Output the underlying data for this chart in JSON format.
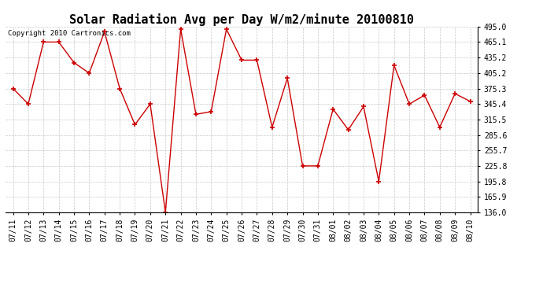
{
  "title": "Solar Radiation Avg per Day W/m2/minute 20100810",
  "copyright": "Copyright 2010 Cartronics.com",
  "dates": [
    "07/11",
    "07/12",
    "07/13",
    "07/14",
    "07/15",
    "07/16",
    "07/17",
    "07/18",
    "07/19",
    "07/20",
    "07/21",
    "07/22",
    "07/23",
    "07/24",
    "07/25",
    "07/26",
    "07/27",
    "07/28",
    "07/29",
    "07/30",
    "07/31",
    "08/01",
    "08/02",
    "08/03",
    "08/04",
    "08/05",
    "08/06",
    "08/07",
    "08/08",
    "08/09",
    "08/10"
  ],
  "values": [
    375.3,
    345.4,
    465.1,
    465.1,
    425.2,
    405.2,
    485.0,
    375.3,
    305.5,
    345.4,
    136.0,
    490.0,
    325.5,
    330.5,
    490.0,
    430.2,
    430.2,
    300.5,
    395.3,
    225.8,
    225.8,
    335.5,
    295.6,
    340.4,
    195.8,
    420.2,
    345.4,
    362.4,
    300.5,
    365.4,
    350.4
  ],
  "line_color": "#cc0000",
  "marker_color": "#cc0000",
  "bg_color": "#ffffff",
  "grid_color": "#c8c8c8",
  "yticks": [
    136.0,
    165.9,
    195.8,
    225.8,
    255.7,
    285.6,
    315.5,
    345.4,
    375.3,
    405.2,
    435.2,
    465.1,
    495.0
  ],
  "ymin": 136.0,
  "ymax": 495.0,
  "title_fontsize": 11,
  "tick_fontsize": 7,
  "copyright_fontsize": 6.5
}
